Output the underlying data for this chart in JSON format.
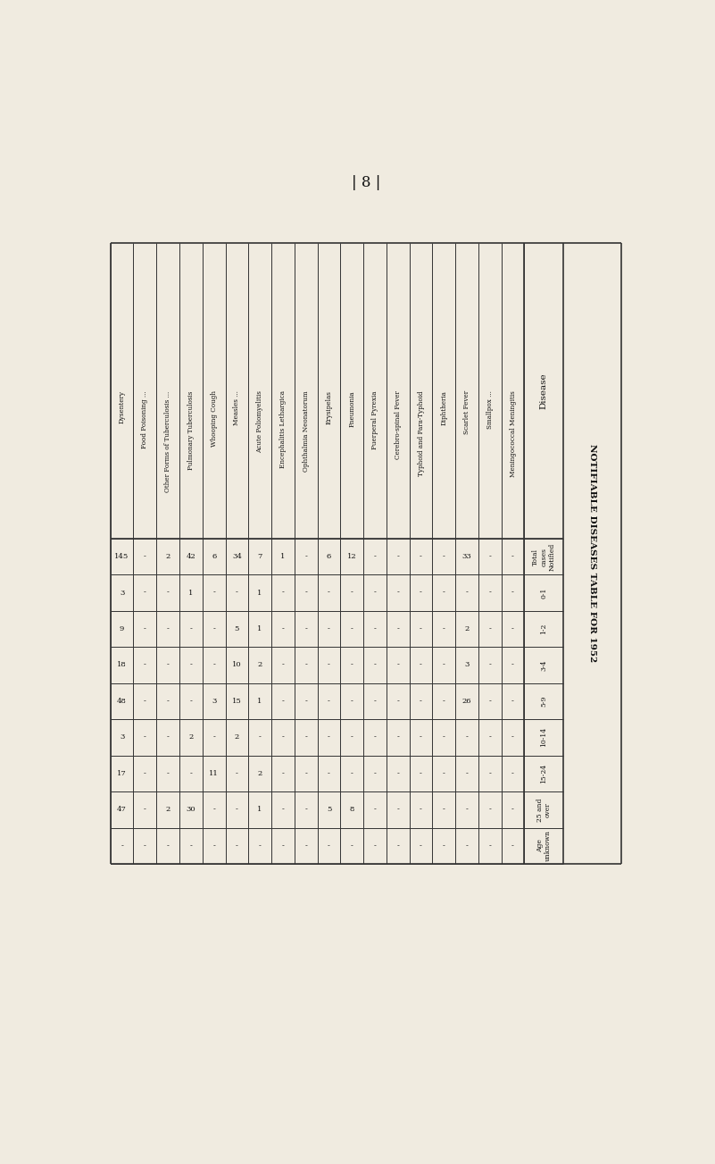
{
  "title": "| 8 |",
  "bg_color": "#f0ebe0",
  "diseases": [
    "Meningococcal Meningitis",
    "Smallpox ...",
    "Scarlet Fever",
    "Diphtheria",
    "Typhoid and Para-Typhoid",
    "Cerebro-spinal Fever",
    "Puerperal Pyrexia",
    "Pneumonia",
    "Erysipelas",
    "Ophthalmia Neonatorum",
    "Encephalitis Lethargica",
    "Acute Poliomyelitis",
    "Measles ...",
    "Whooping Cough",
    "Pulmonary Tuberculosis",
    "Other Forms of Tuberculosis ...",
    "Food Poisoning ...",
    "Dysentery"
  ],
  "row_headers": [
    "Total\ncases\nNotified",
    "0-1",
    "1-2",
    "3-4",
    "5-9",
    "10-14",
    "15-24",
    "25 and\nover",
    "Age\nunknown"
  ],
  "table_data": [
    [
      "-",
      "-",
      "33",
      "-",
      "-",
      "-",
      "-",
      "12",
      "6",
      "-",
      "1",
      "7",
      "34",
      "6",
      "42",
      "2",
      "-",
      "145"
    ],
    [
      "-",
      "-",
      "-",
      "-",
      "-",
      "-",
      "-",
      "-",
      "-",
      "-",
      "-",
      "1",
      "-",
      "-",
      "1",
      "-",
      "-",
      "3"
    ],
    [
      "-",
      "-",
      "2",
      "-",
      "-",
      "-",
      "-",
      "-",
      "-",
      "-",
      "-",
      "1",
      "5",
      "-",
      "-",
      "-",
      "-",
      "9"
    ],
    [
      "-",
      "-",
      "3",
      "-",
      "-",
      "-",
      "-",
      "-",
      "-",
      "-",
      "-",
      "2",
      "10",
      "-",
      "-",
      "-",
      "-",
      "18"
    ],
    [
      "-",
      "-",
      "26",
      "-",
      "-",
      "-",
      "-",
      "-",
      "-",
      "-",
      "-",
      "1",
      "15",
      "3",
      "-",
      "-",
      "-",
      "48"
    ],
    [
      "-",
      "-",
      "-",
      "-",
      "-",
      "-",
      "-",
      "-",
      "-",
      "-",
      "-",
      "-",
      "2",
      "-",
      "2",
      "-",
      "-",
      "3"
    ],
    [
      "-",
      "-",
      "-",
      "-",
      "-",
      "-",
      "-",
      "-",
      "-",
      "-",
      "-",
      "2",
      "-",
      "11",
      "-",
      "-",
      "-",
      "17"
    ],
    [
      "-",
      "-",
      "-",
      "-",
      "-",
      "-",
      "-",
      "8",
      "5",
      "-",
      "-",
      "1",
      "-",
      "-",
      "30",
      "2",
      "-",
      "47"
    ],
    [
      "-",
      "-",
      "-",
      "-",
      "-",
      "-",
      "-",
      "-",
      "-",
      "-",
      "-",
      "-",
      "-",
      "-",
      "-",
      "-",
      "-",
      "-"
    ]
  ],
  "right_title": "NOTIFIABLE DISEASES TABLE FOR 1952",
  "disease_label": "Disease",
  "line_color": "#333333",
  "text_color": "#111111"
}
